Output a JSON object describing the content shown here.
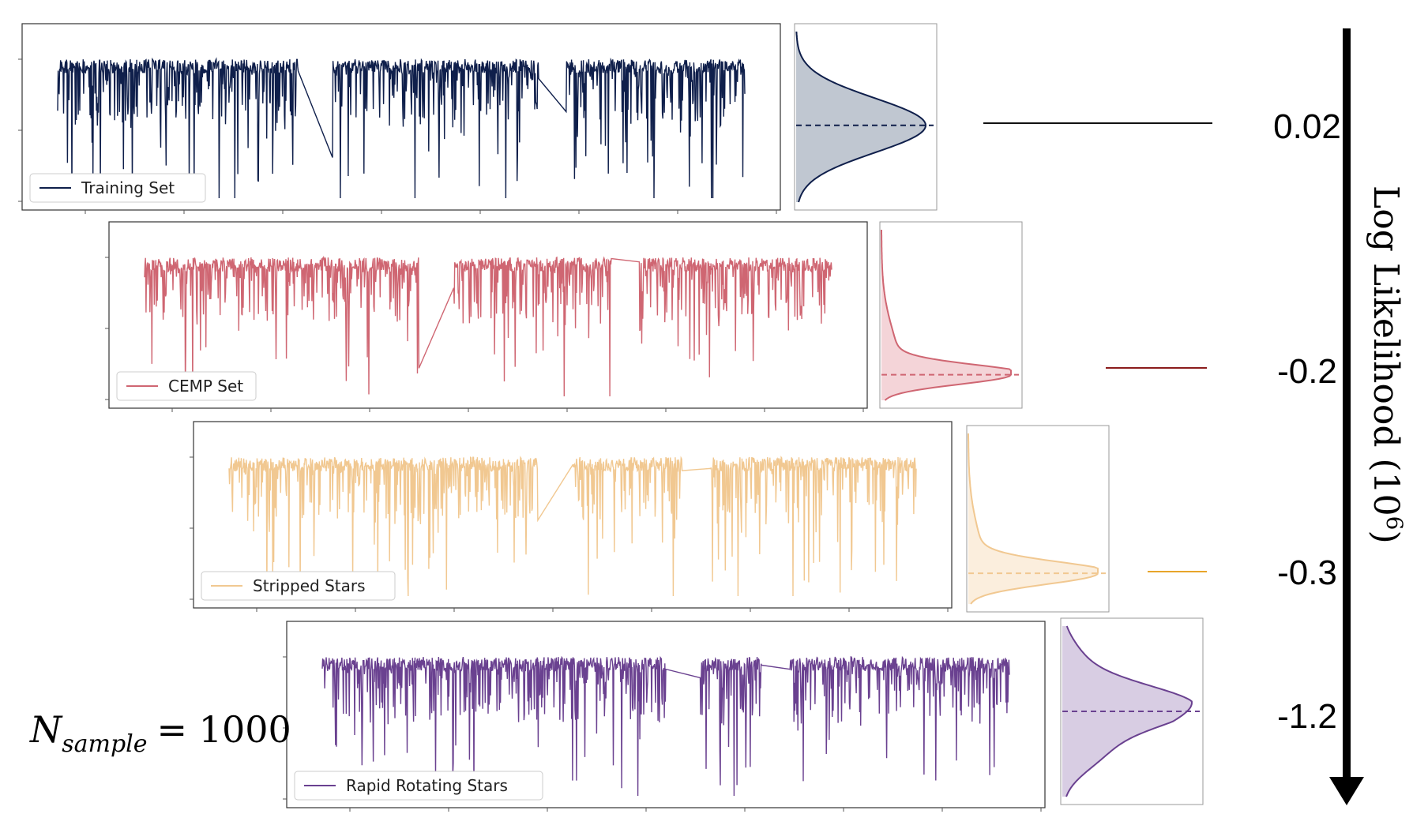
{
  "chart_data": {
    "type": "line",
    "title": "",
    "description_series_order": "top-to-bottom",
    "series": [
      {
        "name": "Training Set",
        "color": "#0f1f4b",
        "fill": "#c0c7d1",
        "log_likelihood": "0.02",
        "marker_color": "#111111",
        "peak": 0.55,
        "skew": 0.0,
        "width": 1.0
      },
      {
        "name": "CEMP Set",
        "color": "#cf6672",
        "fill": "#f4d4d8",
        "log_likelihood": "-0.2",
        "marker_color": "#8b1c1c",
        "peak": 0.85,
        "skew": 0.6,
        "width": 0.35
      },
      {
        "name": "Stripped Stars",
        "color": "#f1c891",
        "fill": "#fbeedd",
        "log_likelihood": "-0.3",
        "marker_color": "#e8a52a",
        "peak": 0.82,
        "skew": 0.5,
        "width": 0.4
      },
      {
        "name": "Rapid Rotating Stars",
        "color": "#6a4190",
        "fill": "#d8cde3",
        "log_likelihood": "-1.2",
        "marker_color": "#6a4190",
        "peak": 0.5,
        "skew": 0.0,
        "width": 1.2
      }
    ],
    "axis": {
      "ylabel": "Log Likelihood (10",
      "ylabel_sup": "6",
      "ylabel_close": ")"
    },
    "annotation": {
      "n_symbol": "N",
      "n_subscript": "sample",
      "n_equals": "= 1000"
    }
  }
}
